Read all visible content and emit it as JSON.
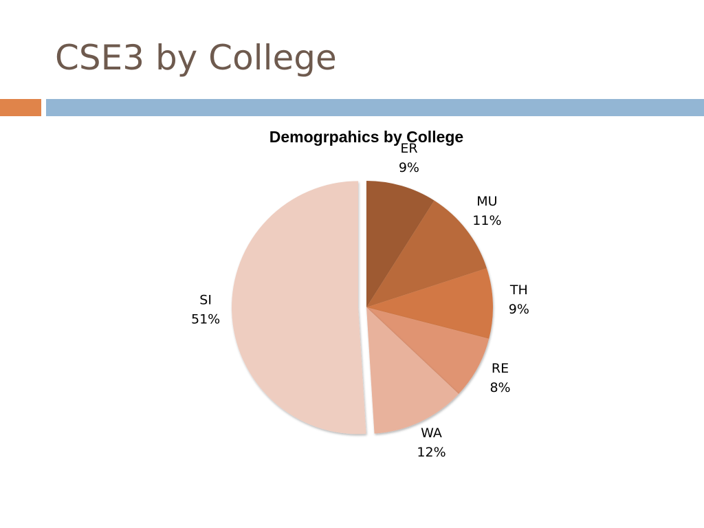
{
  "slide": {
    "title": "CSE3 by College",
    "title_color": "#6e5a4e",
    "accent_color": "#e0844a",
    "rule_color": "#93b6d4"
  },
  "chart_data": {
    "type": "pie",
    "title": "Demogrpahics by College",
    "unit": "%",
    "slices": [
      {
        "name": "ER",
        "value": 9,
        "label_pct": "9%",
        "color": "#9e5a32",
        "exploded": false
      },
      {
        "name": "MU",
        "value": 11,
        "label_pct": "11%",
        "color": "#b96a3a",
        "exploded": false
      },
      {
        "name": "TH",
        "value": 9,
        "label_pct": "9%",
        "color": "#d27844",
        "exploded": false
      },
      {
        "name": "RE",
        "value": 8,
        "label_pct": "8%",
        "color": "#e09472",
        "exploded": false
      },
      {
        "name": "WA",
        "value": 12,
        "label_pct": "12%",
        "color": "#e8b29c",
        "exploded": false
      },
      {
        "name": "SI",
        "value": 51,
        "label_pct": "51%",
        "color": "#eecdc0",
        "exploded": true
      }
    ],
    "legend": "none",
    "labels": "outside"
  }
}
